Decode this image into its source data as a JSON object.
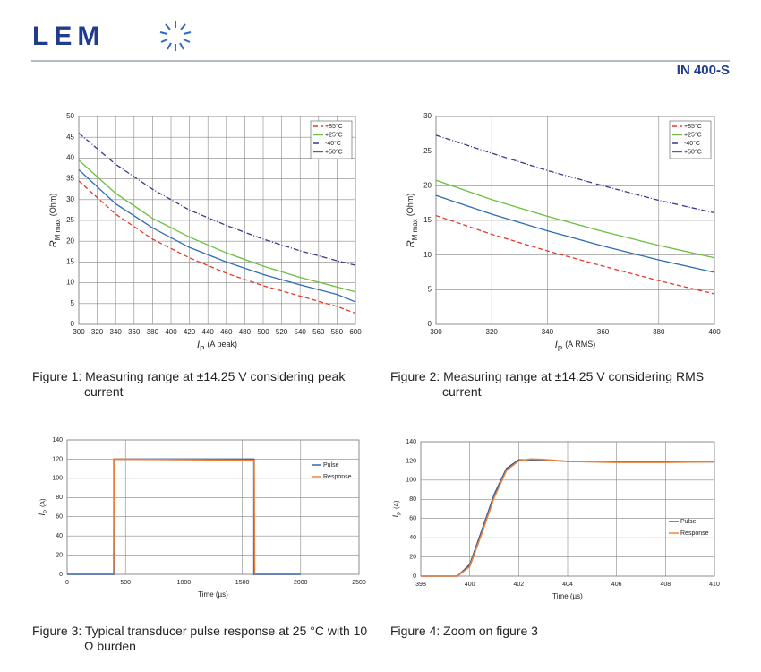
{
  "header": {
    "brand": "LEM",
    "product": "IN 400-S"
  },
  "chart_data": [
    {
      "type": "line",
      "xlabel": {
        "symbol": "I",
        "sub": "P",
        "unit": "(A peak)"
      },
      "ylabel": {
        "symbol": "R",
        "sub": "M max",
        "unit": "(Ohm)"
      },
      "x": [
        300,
        340,
        380,
        420,
        460,
        500,
        540,
        580,
        600
      ],
      "series": [
        {
          "name": "+85°C",
          "color": "#e03a2e",
          "dash": "dashed",
          "values": [
            34.5,
            26.5,
            20.5,
            16,
            12.3,
            9.3,
            6.8,
            4.3,
            2.7
          ]
        },
        {
          "name": "+25°C",
          "color": "#6cbf3c",
          "dash": "solid",
          "values": [
            39.5,
            31.5,
            25.5,
            21,
            17.2,
            14,
            11.3,
            9,
            7.8
          ]
        },
        {
          "name": "-40°C",
          "color": "#3a3a8c",
          "dash": "dashdot",
          "values": [
            46,
            38.5,
            32.5,
            27.5,
            23.8,
            20.5,
            17.7,
            15.3,
            14.2
          ]
        },
        {
          "name": "+50°C",
          "color": "#2e6db4",
          "dash": "solid",
          "values": [
            37.2,
            29,
            23.2,
            18.5,
            15,
            12,
            9.5,
            7.2,
            5.4
          ]
        }
      ],
      "xlim": [
        300,
        600
      ],
      "xticks": [
        300,
        320,
        340,
        360,
        380,
        400,
        420,
        440,
        460,
        480,
        500,
        520,
        540,
        560,
        580,
        600
      ],
      "ylim": [
        0,
        50
      ],
      "yticks": [
        0,
        5,
        10,
        15,
        20,
        25,
        30,
        35,
        40,
        45,
        50
      ],
      "grid": true,
      "legend": "upper right",
      "caption": "Figure 1: Measuring range at ±14.25 V considering peak current"
    },
    {
      "type": "line",
      "xlabel": {
        "symbol": "I",
        "sub": "P",
        "unit": "(A RMS)"
      },
      "ylabel": {
        "symbol": "R",
        "sub": "M max",
        "unit": "(Ohm)"
      },
      "x": [
        300,
        320,
        340,
        360,
        380,
        400
      ],
      "series": [
        {
          "name": "+85°C",
          "color": "#e03a2e",
          "dash": "dashed",
          "values": [
            15.7,
            13,
            10.6,
            8.4,
            6.3,
            4.4
          ]
        },
        {
          "name": "+25°C",
          "color": "#6cbf3c",
          "dash": "solid",
          "values": [
            20.8,
            18,
            15.6,
            13.4,
            11.4,
            9.6
          ]
        },
        {
          "name": "-40°C",
          "color": "#3a3a8c",
          "dash": "dashdot",
          "values": [
            27.3,
            24.7,
            22.2,
            20,
            17.9,
            16.1
          ]
        },
        {
          "name": "+50°C",
          "color": "#2e6db4",
          "dash": "solid",
          "values": [
            18.6,
            15.9,
            13.5,
            11.3,
            9.3,
            7.5
          ]
        }
      ],
      "xlim": [
        300,
        400
      ],
      "xticks": [
        300,
        320,
        340,
        360,
        380,
        400
      ],
      "ylim": [
        0,
        30
      ],
      "yticks": [
        0,
        5,
        10,
        15,
        20,
        25,
        30
      ],
      "grid": true,
      "legend": "upper right",
      "caption": "Figure 2: Measuring range at ±14.25 V considering RMS current"
    },
    {
      "type": "line",
      "xlabel": "Time (µs)",
      "ylabel": {
        "symbol": "I",
        "sub": "P",
        "unit": "(A)"
      },
      "series": [
        {
          "name": "Pulse",
          "color": "#2e5a9c",
          "dash": "solid",
          "x": [
            0,
            400,
            400,
            1600,
            1600,
            2000
          ],
          "values": [
            0,
            0,
            120,
            120,
            0,
            0
          ]
        },
        {
          "name": "Response",
          "color": "#e8803a",
          "dash": "solid",
          "x": [
            0,
            398,
            402,
            1602,
            1606,
            2000
          ],
          "values": [
            1,
            1,
            120,
            119,
            1,
            1
          ]
        }
      ],
      "xlim": [
        0,
        2500
      ],
      "xticks": [
        0,
        500,
        1000,
        1500,
        2000,
        2500
      ],
      "ylim": [
        0,
        140
      ],
      "yticks": [
        0,
        20,
        40,
        60,
        80,
        100,
        120,
        140
      ],
      "grid": true,
      "legend": "upper right",
      "caption": "Figure 3: Typical transducer pulse response at 25 °C with 10 Ω burden"
    },
    {
      "type": "line",
      "xlabel": "Time (µs)",
      "ylabel": {
        "symbol": "I",
        "sub": "P",
        "unit": "(A)"
      },
      "series": [
        {
          "name": "Pulse",
          "color": "#2e5a9c",
          "dash": "solid",
          "x": [
            398,
            399.5,
            400,
            400.5,
            401,
            401.5,
            402,
            403,
            404,
            406,
            408,
            410
          ],
          "values": [
            0,
            0,
            12,
            48,
            85,
            112,
            121,
            121,
            119.5,
            119,
            119,
            119
          ]
        },
        {
          "name": "Response",
          "color": "#e8803a",
          "dash": "solid",
          "x": [
            398,
            399.5,
            400,
            400.5,
            401,
            401.5,
            402,
            402.5,
            403,
            404,
            406,
            408,
            410
          ],
          "values": [
            0,
            0,
            10,
            45,
            82,
            110,
            120,
            122,
            121.5,
            119.5,
            118.5,
            118.5,
            119
          ]
        }
      ],
      "xlim": [
        398,
        410
      ],
      "xticks": [
        398,
        400,
        402,
        404,
        406,
        408,
        410
      ],
      "ylim": [
        0,
        140
      ],
      "yticks": [
        0,
        20,
        40,
        60,
        80,
        100,
        120,
        140
      ],
      "grid": true,
      "legend": "right",
      "caption": "Figure 4: Zoom on figure 3"
    }
  ]
}
